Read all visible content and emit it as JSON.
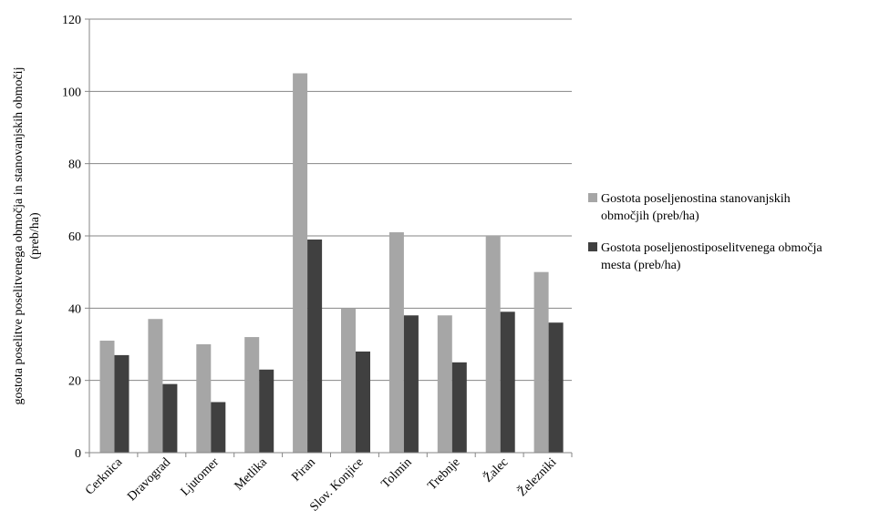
{
  "chart_data": {
    "type": "bar",
    "categories": [
      "Cerknica",
      "Dravograd",
      "Ljutomer",
      "Metlika",
      "Piran",
      "Slov. Konjice",
      "Tolmin",
      "Trebnje",
      "Žalec",
      "Železniki"
    ],
    "series": [
      {
        "name": "Gostota poseljenostina stanovanjskih območjih (preb/ha)",
        "legend_lines": [
          "Gostota poseljenostina stanovanjskih",
          "območjih (preb/ha)"
        ],
        "color": "#a6a6a6",
        "values": [
          31,
          37,
          30,
          32,
          105,
          40,
          61,
          38,
          60,
          50
        ]
      },
      {
        "name": "Gostota poseljenostiposelitvenega območja mesta (preb/ha)",
        "legend_lines": [
          "Gostota poseljenostiposelitvenega območja",
          "mesta (preb/ha)"
        ],
        "color": "#404040",
        "values": [
          27,
          19,
          14,
          23,
          59,
          28,
          38,
          25,
          39,
          36
        ]
      }
    ],
    "ylabel_lines": [
      "gostota poselitve poselitvenega območja in stanovanjskih območij",
      "(preb/ha)"
    ],
    "xlabel": "",
    "ylim": [
      0,
      120
    ],
    "yticks": [
      0,
      20,
      40,
      60,
      80,
      100,
      120
    ],
    "grid": true,
    "legend_position": "right"
  }
}
